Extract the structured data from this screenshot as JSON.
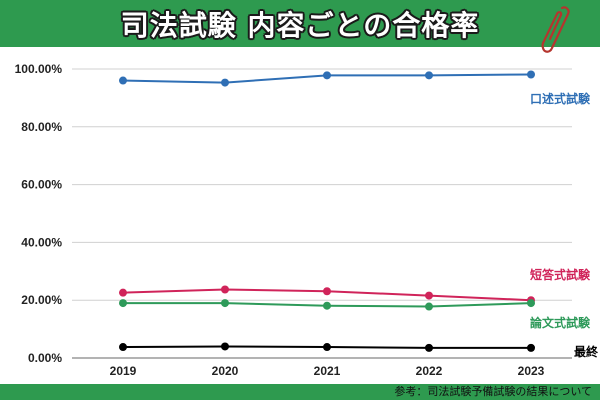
{
  "header": {
    "title": "司法試験 内容ごとの合格率",
    "icon": "paperclip-icon"
  },
  "footer": {
    "source": "参考：司法試験予備試験の結果について"
  },
  "colors": {
    "header_bg": "#2e9a4f",
    "oral": "#2f6fb5",
    "short": "#d0245a",
    "essay": "#2e9a5a",
    "final": "#000000",
    "grid": "#d0d0d0"
  },
  "chart_data": {
    "type": "line",
    "title": "司法試験 内容ごとの合格率",
    "xlabel": "",
    "ylabel": "",
    "x": [
      "2019",
      "2020",
      "2021",
      "2022",
      "2023"
    ],
    "ylim": [
      0,
      100
    ],
    "yticks": [
      "0.00%",
      "20.00%",
      "40.00%",
      "60.00%",
      "80.00%",
      "100.00%"
    ],
    "grid": true,
    "legend_position": "inline-right",
    "series": [
      {
        "name": "口述式試験",
        "color": "#2f6fb5",
        "values": [
          96.0,
          95.3,
          97.8,
          97.8,
          98.1
        ]
      },
      {
        "name": "短答式試験",
        "color": "#d0245a",
        "values": [
          22.6,
          23.7,
          23.1,
          21.6,
          20.0
        ]
      },
      {
        "name": "論文式試験",
        "color": "#2e9a5a",
        "values": [
          19.0,
          19.0,
          18.1,
          17.8,
          19.0
        ]
      },
      {
        "name": "最終",
        "color": "#000000",
        "values": [
          3.8,
          4.0,
          3.8,
          3.5,
          3.5
        ]
      }
    ]
  }
}
